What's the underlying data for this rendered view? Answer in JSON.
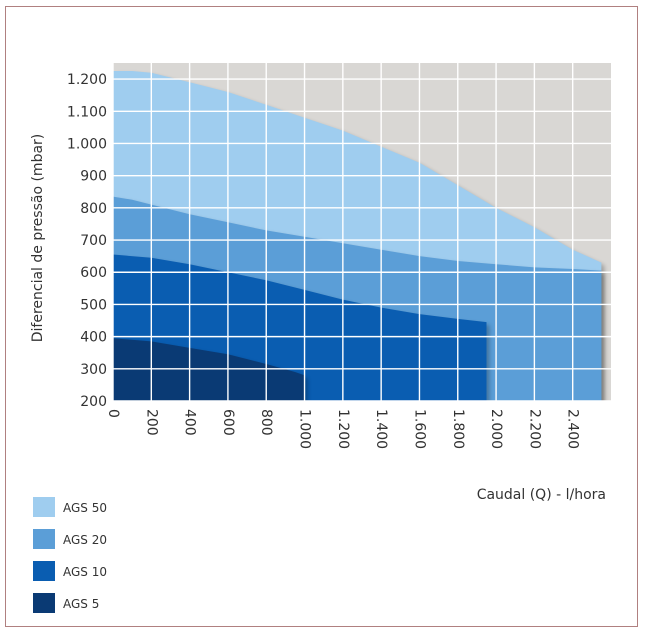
{
  "chart_data": {
    "type": "area",
    "title": "",
    "xlabel": "Caudal (Q) - l/hora",
    "ylabel": "Diferencial de pressão (mbar)",
    "xlim": [
      0,
      2600
    ],
    "ylim": [
      200,
      1250
    ],
    "x_ticks": [
      0,
      200,
      400,
      600,
      800,
      1000,
      1200,
      1400,
      1600,
      1800,
      2000,
      2200,
      2400
    ],
    "x_tick_labels": [
      "0",
      "200",
      "400",
      "600",
      "800",
      "1.000",
      "1.200",
      "1.400",
      "1.600",
      "1.800",
      "2.000",
      "2.200",
      "2.400"
    ],
    "y_ticks": [
      200,
      300,
      400,
      500,
      600,
      700,
      800,
      900,
      1000,
      1100,
      1200
    ],
    "y_tick_labels": [
      "200",
      "300",
      "400",
      "500",
      "600",
      "700",
      "800",
      "900",
      "1.000",
      "1.100",
      "1.200"
    ],
    "grid": true,
    "background_color": "#d9d7d4",
    "grid_color": "#ffffff",
    "legend_position": "bottom-left",
    "series": [
      {
        "name": "AGS 50",
        "color": "#9fcdef",
        "x": [
          0,
          100,
          200,
          400,
          600,
          800,
          1000,
          1200,
          1400,
          1600,
          1800,
          2000,
          2200,
          2400,
          2550
        ],
        "y": [
          1225,
          1225,
          1220,
          1190,
          1160,
          1120,
          1080,
          1040,
          990,
          940,
          870,
          800,
          740,
          670,
          630
        ]
      },
      {
        "name": "AGS 20",
        "color": "#5b9ed7",
        "x": [
          0,
          100,
          200,
          400,
          600,
          800,
          1000,
          1200,
          1400,
          1600,
          1800,
          2000,
          2200,
          2400,
          2550
        ],
        "y": [
          835,
          825,
          810,
          780,
          755,
          730,
          710,
          690,
          670,
          650,
          635,
          625,
          615,
          610,
          605
        ]
      },
      {
        "name": "AGS 10",
        "color": "#0a5db1",
        "x": [
          0,
          200,
          400,
          600,
          800,
          1000,
          1200,
          1400,
          1600,
          1800,
          1950
        ],
        "y": [
          655,
          645,
          625,
          600,
          575,
          545,
          515,
          490,
          470,
          455,
          445
        ]
      },
      {
        "name": "AGS 5",
        "color": "#0a3a74",
        "x": [
          0,
          200,
          400,
          600,
          800,
          950,
          1000
        ],
        "y": [
          395,
          385,
          365,
          345,
          315,
          290,
          280
        ]
      }
    ]
  }
}
